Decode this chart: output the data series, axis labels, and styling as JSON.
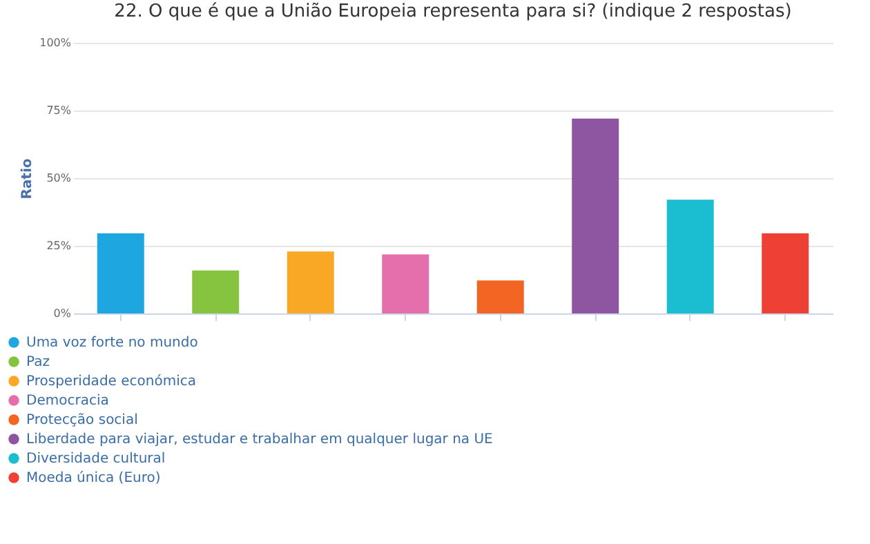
{
  "chart_data": {
    "type": "bar",
    "title": "22. O que é que a União Europeia representa para si? (indique 2 respostas)",
    "ylabel": "Ratio",
    "categories": [
      null,
      null,
      null,
      null,
      null,
      null,
      null,
      null
    ],
    "series": [
      {
        "name": "Uma voz forte no mundo",
        "color": "#1ea6e0",
        "values": [
          29.6,
          null,
          null,
          null,
          null,
          null,
          null,
          null
        ]
      },
      {
        "name": "Paz",
        "color": "#86c440",
        "values": [
          null,
          15.9,
          null,
          null,
          null,
          null,
          null,
          null
        ]
      },
      {
        "name": "Prosperidade económica",
        "color": "#f9a825",
        "values": [
          null,
          null,
          22.9,
          null,
          null,
          null,
          null,
          null
        ]
      },
      {
        "name": "Democracia",
        "color": "#e46fac",
        "values": [
          null,
          null,
          null,
          21.8,
          null,
          null,
          null,
          null
        ]
      },
      {
        "name": "Protecção social",
        "color": "#f26522",
        "values": [
          null,
          null,
          null,
          null,
          12.2,
          null,
          null,
          null
        ]
      },
      {
        "name": "Liberdade para viajar, estudar e trabalhar em qualquer lugar na UE",
        "color": "#8e55a1",
        "values": [
          null,
          null,
          null,
          null,
          null,
          72.0,
          null,
          null
        ]
      },
      {
        "name": "Diversidade cultural",
        "color": "#1bbed1",
        "values": [
          null,
          null,
          null,
          null,
          null,
          null,
          42.0,
          null
        ]
      },
      {
        "name": "Moeda única (Euro)",
        "color": "#ee4035",
        "values": [
          null,
          null,
          null,
          null,
          null,
          null,
          null,
          29.6
        ]
      }
    ],
    "ylim": [
      0,
      100
    ],
    "yticks": [
      {
        "value": 0,
        "label": "0%"
      },
      {
        "value": 25,
        "label": "25%"
      },
      {
        "value": 50,
        "label": "50%"
      },
      {
        "value": 75,
        "label": "75%"
      },
      {
        "value": 100,
        "label": "100%"
      }
    ],
    "grid": "y",
    "legend": "bottom left",
    "tick_labels": "y"
  }
}
